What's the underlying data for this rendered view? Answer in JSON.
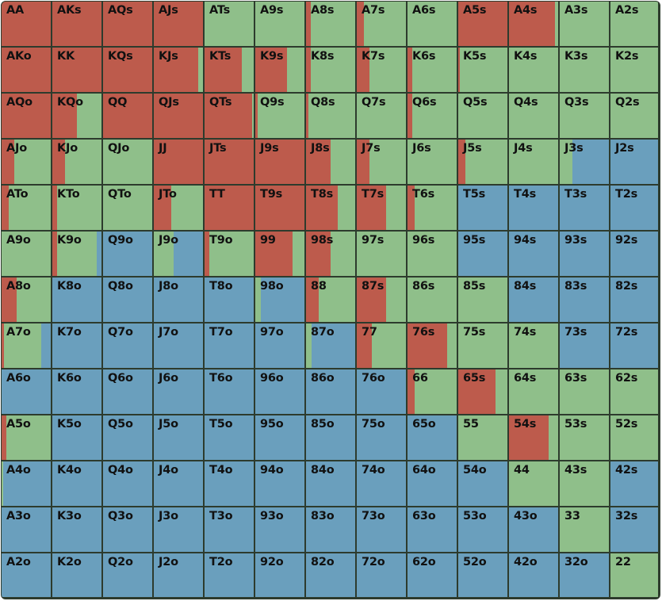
{
  "colors": {
    "raise": "#bd5b4c",
    "call": "#8fbf8a",
    "fold": "#6a9fbd",
    "grid": "#2d3b2d"
  },
  "legend_order": [
    "raise",
    "call",
    "fold"
  ],
  "hands": [
    [
      {
        "label": "AA",
        "mix": [
          1,
          0,
          0
        ]
      },
      {
        "label": "AKs",
        "mix": [
          1,
          0,
          0
        ]
      },
      {
        "label": "AQs",
        "mix": [
          1,
          0,
          0
        ]
      },
      {
        "label": "AJs",
        "mix": [
          1,
          0,
          0
        ]
      },
      {
        "label": "ATs",
        "mix": [
          0,
          1,
          0
        ]
      },
      {
        "label": "A9s",
        "mix": [
          0,
          1,
          0
        ]
      },
      {
        "label": "A8s",
        "mix": [
          0.1,
          0.9,
          0
        ]
      },
      {
        "label": "A7s",
        "mix": [
          0.15,
          0.85,
          0
        ]
      },
      {
        "label": "A6s",
        "mix": [
          0,
          1,
          0
        ]
      },
      {
        "label": "A5s",
        "mix": [
          1,
          0,
          0
        ]
      },
      {
        "label": "A4s",
        "mix": [
          0.93,
          0.07,
          0
        ]
      },
      {
        "label": "A3s",
        "mix": [
          0,
          1,
          0
        ]
      },
      {
        "label": "A2s",
        "mix": [
          0,
          1,
          0
        ]
      }
    ],
    [
      {
        "label": "AKo",
        "mix": [
          1,
          0,
          0
        ]
      },
      {
        "label": "KK",
        "mix": [
          1,
          0,
          0
        ]
      },
      {
        "label": "KQs",
        "mix": [
          1,
          0,
          0
        ]
      },
      {
        "label": "KJs",
        "mix": [
          0.9,
          0.1,
          0
        ]
      },
      {
        "label": "KTs",
        "mix": [
          0.75,
          0.25,
          0
        ]
      },
      {
        "label": "K9s",
        "mix": [
          0.65,
          0.35,
          0
        ]
      },
      {
        "label": "K8s",
        "mix": [
          0.1,
          0.9,
          0
        ]
      },
      {
        "label": "K7s",
        "mix": [
          0.25,
          0.75,
          0
        ]
      },
      {
        "label": "K6s",
        "mix": [
          0.1,
          0.9,
          0
        ]
      },
      {
        "label": "K5s",
        "mix": [
          0.03,
          0.97,
          0
        ]
      },
      {
        "label": "K4s",
        "mix": [
          0,
          1,
          0
        ]
      },
      {
        "label": "K3s",
        "mix": [
          0,
          1,
          0
        ]
      },
      {
        "label": "K2s",
        "mix": [
          0,
          1,
          0
        ]
      }
    ],
    [
      {
        "label": "AQo",
        "mix": [
          1,
          0,
          0
        ]
      },
      {
        "label": "KQo",
        "mix": [
          0.5,
          0.5,
          0
        ]
      },
      {
        "label": "QQ",
        "mix": [
          1,
          0,
          0
        ]
      },
      {
        "label": "QJs",
        "mix": [
          1,
          0,
          0
        ]
      },
      {
        "label": "QTs",
        "mix": [
          0.97,
          0.03,
          0
        ]
      },
      {
        "label": "Q9s",
        "mix": [
          0.05,
          0.95,
          0
        ]
      },
      {
        "label": "Q8s",
        "mix": [
          0.05,
          0.95,
          0
        ]
      },
      {
        "label": "Q7s",
        "mix": [
          0,
          1,
          0
        ]
      },
      {
        "label": "Q6s",
        "mix": [
          0.1,
          0.9,
          0
        ]
      },
      {
        "label": "Q5s",
        "mix": [
          0,
          1,
          0
        ]
      },
      {
        "label": "Q4s",
        "mix": [
          0,
          1,
          0
        ]
      },
      {
        "label": "Q3s",
        "mix": [
          0,
          1,
          0
        ]
      },
      {
        "label": "Q2s",
        "mix": [
          0,
          1,
          0
        ]
      }
    ],
    [
      {
        "label": "AJo",
        "mix": [
          0.25,
          0.75,
          0
        ]
      },
      {
        "label": "KJo",
        "mix": [
          0.25,
          0.75,
          0
        ]
      },
      {
        "label": "QJo",
        "mix": [
          0,
          1,
          0
        ]
      },
      {
        "label": "JJ",
        "mix": [
          1,
          0,
          0
        ]
      },
      {
        "label": "JTs",
        "mix": [
          1,
          0,
          0
        ]
      },
      {
        "label": "J9s",
        "mix": [
          1,
          0,
          0
        ]
      },
      {
        "label": "J8s",
        "mix": [
          0.5,
          0.5,
          0
        ]
      },
      {
        "label": "J7s",
        "mix": [
          0.25,
          0.75,
          0
        ]
      },
      {
        "label": "J6s",
        "mix": [
          0,
          1,
          0
        ]
      },
      {
        "label": "J5s",
        "mix": [
          0.15,
          0.85,
          0
        ]
      },
      {
        "label": "J4s",
        "mix": [
          0,
          1,
          0
        ]
      },
      {
        "label": "J3s",
        "mix": [
          0,
          0.25,
          0.75
        ]
      },
      {
        "label": "J2s",
        "mix": [
          0,
          0,
          1
        ]
      }
    ],
    [
      {
        "label": "ATo",
        "mix": [
          0.15,
          0.85,
          0
        ]
      },
      {
        "label": "KTo",
        "mix": [
          0.1,
          0.9,
          0
        ]
      },
      {
        "label": "QTo",
        "mix": [
          0,
          1,
          0
        ]
      },
      {
        "label": "JTo",
        "mix": [
          0.35,
          0.65,
          0
        ]
      },
      {
        "label": "TT",
        "mix": [
          1,
          0,
          0
        ]
      },
      {
        "label": "T9s",
        "mix": [
          1,
          0,
          0
        ]
      },
      {
        "label": "T8s",
        "mix": [
          0.65,
          0.35,
          0
        ]
      },
      {
        "label": "T7s",
        "mix": [
          0.6,
          0.4,
          0
        ]
      },
      {
        "label": "T6s",
        "mix": [
          0.15,
          0.85,
          0
        ]
      },
      {
        "label": "T5s",
        "mix": [
          0,
          0,
          1
        ]
      },
      {
        "label": "T4s",
        "mix": [
          0,
          0,
          1
        ]
      },
      {
        "label": "T3s",
        "mix": [
          0,
          0,
          1
        ]
      },
      {
        "label": "T2s",
        "mix": [
          0,
          0,
          1
        ]
      }
    ],
    [
      {
        "label": "A9o",
        "mix": [
          0,
          1,
          0
        ]
      },
      {
        "label": "K9o",
        "mix": [
          0.1,
          0.8,
          0.1
        ]
      },
      {
        "label": "Q9o",
        "mix": [
          0,
          0,
          1
        ]
      },
      {
        "label": "J9o",
        "mix": [
          0,
          0.4,
          0.6
        ]
      },
      {
        "label": "T9o",
        "mix": [
          0.1,
          0.9,
          0
        ]
      },
      {
        "label": "99",
        "mix": [
          0.75,
          0.25,
          0
        ]
      },
      {
        "label": "98s",
        "mix": [
          0.5,
          0.5,
          0
        ]
      },
      {
        "label": "97s",
        "mix": [
          0,
          1,
          0
        ]
      },
      {
        "label": "96s",
        "mix": [
          0,
          1,
          0
        ]
      },
      {
        "label": "95s",
        "mix": [
          0,
          0,
          1
        ]
      },
      {
        "label": "94s",
        "mix": [
          0,
          0,
          1
        ]
      },
      {
        "label": "93s",
        "mix": [
          0,
          0,
          1
        ]
      },
      {
        "label": "92s",
        "mix": [
          0,
          0,
          1
        ]
      }
    ],
    [
      {
        "label": "A8o",
        "mix": [
          0.3,
          0.7,
          0
        ]
      },
      {
        "label": "K8o",
        "mix": [
          0,
          0,
          1
        ]
      },
      {
        "label": "Q8o",
        "mix": [
          0,
          0,
          1
        ]
      },
      {
        "label": "J8o",
        "mix": [
          0,
          0,
          1
        ]
      },
      {
        "label": "T8o",
        "mix": [
          0,
          0,
          1
        ]
      },
      {
        "label": "98o",
        "mix": [
          0,
          0.12,
          0.88
        ]
      },
      {
        "label": "88",
        "mix": [
          0.25,
          0.75,
          0
        ]
      },
      {
        "label": "87s",
        "mix": [
          0.6,
          0.4,
          0
        ]
      },
      {
        "label": "86s",
        "mix": [
          0,
          1,
          0
        ]
      },
      {
        "label": "85s",
        "mix": [
          0,
          1,
          0
        ]
      },
      {
        "label": "84s",
        "mix": [
          0,
          0,
          1
        ]
      },
      {
        "label": "83s",
        "mix": [
          0,
          0,
          1
        ]
      },
      {
        "label": "82s",
        "mix": [
          0,
          0,
          1
        ]
      }
    ],
    [
      {
        "label": "A7o",
        "mix": [
          0.05,
          0.75,
          0.2
        ]
      },
      {
        "label": "K7o",
        "mix": [
          0,
          0,
          1
        ]
      },
      {
        "label": "Q7o",
        "mix": [
          0,
          0,
          1
        ]
      },
      {
        "label": "J7o",
        "mix": [
          0,
          0,
          1
        ]
      },
      {
        "label": "T7o",
        "mix": [
          0,
          0,
          1
        ]
      },
      {
        "label": "97o",
        "mix": [
          0,
          0,
          1
        ]
      },
      {
        "label": "87o",
        "mix": [
          0,
          0.12,
          0.88
        ]
      },
      {
        "label": "77",
        "mix": [
          0.3,
          0.7,
          0
        ]
      },
      {
        "label": "76s",
        "mix": [
          0.8,
          0.2,
          0
        ]
      },
      {
        "label": "75s",
        "mix": [
          0,
          1,
          0
        ]
      },
      {
        "label": "74s",
        "mix": [
          0,
          1,
          0
        ]
      },
      {
        "label": "73s",
        "mix": [
          0,
          0,
          1
        ]
      },
      {
        "label": "72s",
        "mix": [
          0,
          0,
          1
        ]
      }
    ],
    [
      {
        "label": "A6o",
        "mix": [
          0,
          0,
          1
        ]
      },
      {
        "label": "K6o",
        "mix": [
          0,
          0,
          1
        ]
      },
      {
        "label": "Q6o",
        "mix": [
          0,
          0,
          1
        ]
      },
      {
        "label": "J6o",
        "mix": [
          0,
          0,
          1
        ]
      },
      {
        "label": "T6o",
        "mix": [
          0,
          0,
          1
        ]
      },
      {
        "label": "96o",
        "mix": [
          0,
          0,
          1
        ]
      },
      {
        "label": "86o",
        "mix": [
          0,
          0,
          1
        ]
      },
      {
        "label": "76o",
        "mix": [
          0,
          0,
          1
        ]
      },
      {
        "label": "66",
        "mix": [
          0.15,
          0.85,
          0
        ]
      },
      {
        "label": "65s",
        "mix": [
          0.75,
          0.25,
          0
        ]
      },
      {
        "label": "64s",
        "mix": [
          0,
          1,
          0
        ]
      },
      {
        "label": "63s",
        "mix": [
          0,
          1,
          0
        ]
      },
      {
        "label": "62s",
        "mix": [
          0,
          1,
          0
        ]
      }
    ],
    [
      {
        "label": "A5o",
        "mix": [
          0.1,
          0.9,
          0
        ]
      },
      {
        "label": "K5o",
        "mix": [
          0,
          0,
          1
        ]
      },
      {
        "label": "Q5o",
        "mix": [
          0,
          0,
          1
        ]
      },
      {
        "label": "J5o",
        "mix": [
          0,
          0,
          1
        ]
      },
      {
        "label": "T5o",
        "mix": [
          0,
          0,
          1
        ]
      },
      {
        "label": "95o",
        "mix": [
          0,
          0,
          1
        ]
      },
      {
        "label": "85o",
        "mix": [
          0,
          0,
          1
        ]
      },
      {
        "label": "75o",
        "mix": [
          0,
          0,
          1
        ]
      },
      {
        "label": "65o",
        "mix": [
          0,
          0,
          1
        ]
      },
      {
        "label": "55",
        "mix": [
          0,
          1,
          0
        ]
      },
      {
        "label": "54s",
        "mix": [
          0.8,
          0.2,
          0
        ]
      },
      {
        "label": "53s",
        "mix": [
          0,
          1,
          0
        ]
      },
      {
        "label": "52s",
        "mix": [
          0,
          1,
          0
        ]
      }
    ],
    [
      {
        "label": "A4o",
        "mix": [
          0,
          0.03,
          0.97
        ]
      },
      {
        "label": "K4o",
        "mix": [
          0,
          0,
          1
        ]
      },
      {
        "label": "Q4o",
        "mix": [
          0,
          0,
          1
        ]
      },
      {
        "label": "J4o",
        "mix": [
          0,
          0,
          1
        ]
      },
      {
        "label": "T4o",
        "mix": [
          0,
          0,
          1
        ]
      },
      {
        "label": "94o",
        "mix": [
          0,
          0,
          1
        ]
      },
      {
        "label": "84o",
        "mix": [
          0,
          0,
          1
        ]
      },
      {
        "label": "74o",
        "mix": [
          0,
          0,
          1
        ]
      },
      {
        "label": "64o",
        "mix": [
          0,
          0,
          1
        ]
      },
      {
        "label": "54o",
        "mix": [
          0,
          0,
          1
        ]
      },
      {
        "label": "44",
        "mix": [
          0,
          1,
          0
        ]
      },
      {
        "label": "43s",
        "mix": [
          0,
          1,
          0
        ]
      },
      {
        "label": "42s",
        "mix": [
          0,
          0,
          1
        ]
      }
    ],
    [
      {
        "label": "A3o",
        "mix": [
          0,
          0,
          1
        ]
      },
      {
        "label": "K3o",
        "mix": [
          0,
          0,
          1
        ]
      },
      {
        "label": "Q3o",
        "mix": [
          0,
          0,
          1
        ]
      },
      {
        "label": "J3o",
        "mix": [
          0,
          0,
          1
        ]
      },
      {
        "label": "T3o",
        "mix": [
          0,
          0,
          1
        ]
      },
      {
        "label": "93o",
        "mix": [
          0,
          0,
          1
        ]
      },
      {
        "label": "83o",
        "mix": [
          0,
          0,
          1
        ]
      },
      {
        "label": "73o",
        "mix": [
          0,
          0,
          1
        ]
      },
      {
        "label": "63o",
        "mix": [
          0,
          0,
          1
        ]
      },
      {
        "label": "53o",
        "mix": [
          0,
          0,
          1
        ]
      },
      {
        "label": "43o",
        "mix": [
          0,
          0,
          1
        ]
      },
      {
        "label": "33",
        "mix": [
          0,
          1,
          0
        ]
      },
      {
        "label": "32s",
        "mix": [
          0,
          0,
          1
        ]
      }
    ],
    [
      {
        "label": "A2o",
        "mix": [
          0,
          0,
          1
        ]
      },
      {
        "label": "K2o",
        "mix": [
          0,
          0,
          1
        ]
      },
      {
        "label": "Q2o",
        "mix": [
          0,
          0,
          1
        ]
      },
      {
        "label": "J2o",
        "mix": [
          0,
          0,
          1
        ]
      },
      {
        "label": "T2o",
        "mix": [
          0,
          0,
          1
        ]
      },
      {
        "label": "92o",
        "mix": [
          0,
          0,
          1
        ]
      },
      {
        "label": "82o",
        "mix": [
          0,
          0,
          1
        ]
      },
      {
        "label": "72o",
        "mix": [
          0,
          0,
          1
        ]
      },
      {
        "label": "62o",
        "mix": [
          0,
          0,
          1
        ]
      },
      {
        "label": "52o",
        "mix": [
          0,
          0,
          1
        ]
      },
      {
        "label": "42o",
        "mix": [
          0,
          0,
          1
        ]
      },
      {
        "label": "32o",
        "mix": [
          0,
          0,
          1
        ]
      },
      {
        "label": "22",
        "mix": [
          0,
          1,
          0
        ]
      }
    ]
  ]
}
